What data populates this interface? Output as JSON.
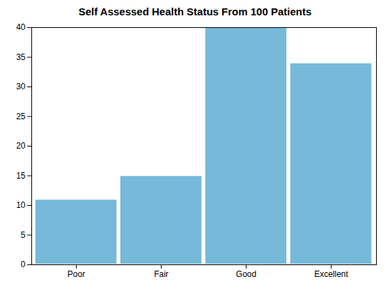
{
  "chart_data": {
    "type": "bar",
    "title": "Self Assessed Health Status From 100 Patients",
    "categories": [
      "Poor",
      "Fair",
      "Good",
      "Excellent"
    ],
    "values": [
      11,
      15,
      40,
      34
    ],
    "color": "#77B9D9",
    "ylim": [
      0,
      40
    ],
    "yticks": [
      0,
      5,
      10,
      15,
      20,
      25,
      30,
      35,
      40
    ],
    "grid": false
  }
}
